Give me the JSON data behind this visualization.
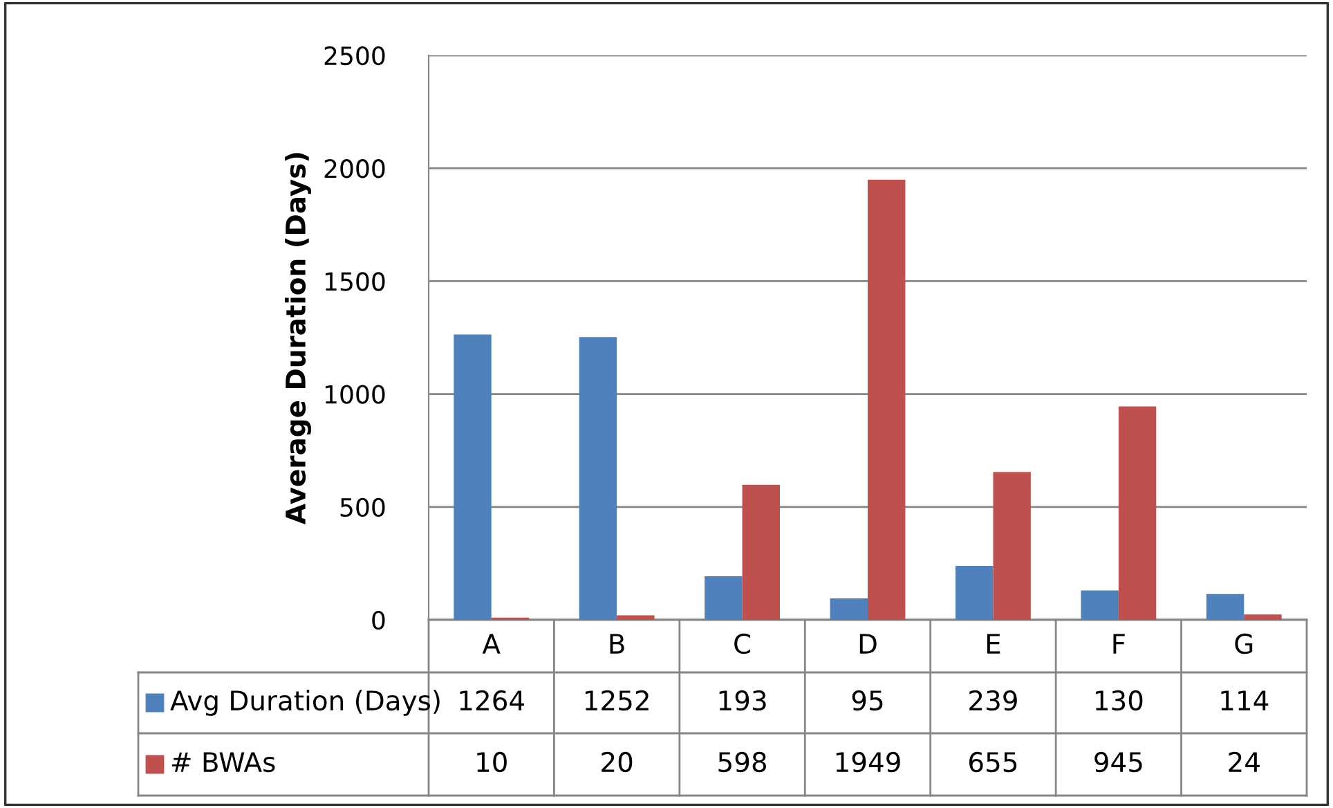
{
  "chart_data": {
    "type": "bar",
    "ylabel": "Average Duration (Days)",
    "categories": [
      "A",
      "B",
      "C",
      "D",
      "E",
      "F",
      "G"
    ],
    "series": [
      {
        "name": "Avg Duration (Days)",
        "color": "#4f81bd",
        "values": [
          1264,
          1252,
          193,
          95,
          239,
          130,
          114
        ]
      },
      {
        "name": "# BWAs",
        "color": "#c0504d",
        "values": [
          10,
          20,
          598,
          1949,
          655,
          945,
          24
        ]
      }
    ],
    "ylim": [
      0,
      2500
    ],
    "yticks": [
      0,
      500,
      1000,
      1500,
      2000,
      2500
    ],
    "grid": "y",
    "legend": "bottom left",
    "data_labels": true
  }
}
